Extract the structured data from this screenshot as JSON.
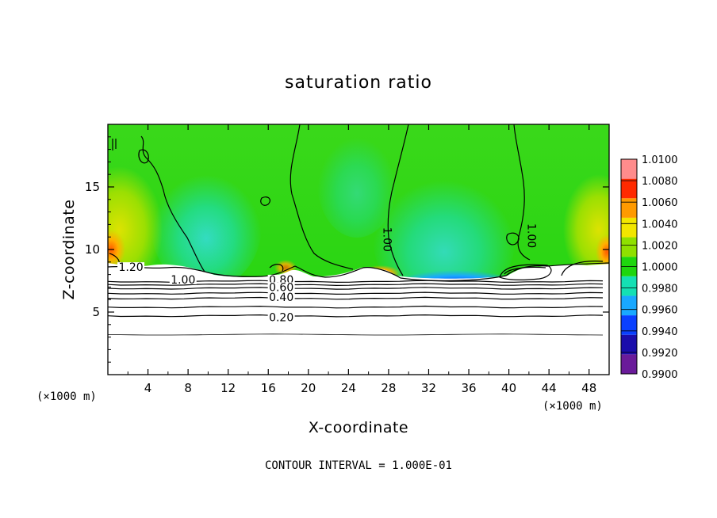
{
  "chart_data": {
    "type": "heatmap",
    "title": "saturation ratio",
    "xlabel": "X-coordinate",
    "ylabel": "Z-coordinate",
    "x_unit_label": "(×1000 m)",
    "y_unit_label": "(×1000 m)",
    "xlim": [
      0,
      50
    ],
    "ylim": [
      0,
      20
    ],
    "x_ticks": [
      4,
      8,
      12,
      16,
      20,
      24,
      28,
      32,
      36,
      40,
      44,
      48
    ],
    "y_ticks": [
      5,
      10,
      15
    ],
    "colorbar": {
      "values": [
        0.99,
        0.992,
        0.994,
        0.996,
        0.998,
        1.0,
        1.002,
        1.004,
        1.006,
        1.008,
        1.01
      ],
      "labels": [
        "0.9900",
        "0.9920",
        "0.9940",
        "0.9960",
        "0.9980",
        "1.0000",
        "1.0020",
        "1.0040",
        "1.0060",
        "1.0080",
        "1.0100"
      ],
      "colors": [
        "#6a1b9a",
        "#1a0dab",
        "#0a40ff",
        "#19a8ff",
        "#14e0b4",
        "#1ed60e",
        "#8fe000",
        "#f2e600",
        "#ff9a00",
        "#ff2a00",
        "#ff8c8c"
      ]
    },
    "contour_interval_text": "CONTOUR INTERVAL = 1.000E-01",
    "contour_labels": [
      {
        "text": "1.20",
        "x": 2.3,
        "z": 8.6
      },
      {
        "text": "1.00",
        "x": 7.5,
        "z": 7.6
      },
      {
        "text": "0.80",
        "x": 17.3,
        "z": 7.6
      },
      {
        "text": "0.60",
        "x": 17.3,
        "z": 7.0
      },
      {
        "text": "0.40",
        "x": 17.3,
        "z": 6.2
      },
      {
        "text": "0.20",
        "x": 17.3,
        "z": 4.6
      },
      {
        "text": "1.00",
        "x": 27.9,
        "z": 10.8
      },
      {
        "text": "1.00",
        "x": 42.3,
        "z": 11.1
      }
    ],
    "contour_levels": [
      {
        "level": 0.2,
        "z": 4.7
      },
      {
        "level": 0.3,
        "z": 5.4
      },
      {
        "level": 0.4,
        "z": 6.1
      },
      {
        "level": 0.5,
        "z": 6.5
      },
      {
        "level": 0.6,
        "z": 6.9
      },
      {
        "level": 0.7,
        "z": 7.2
      },
      {
        "level": 0.8,
        "z": 7.45
      }
    ],
    "grid": false
  }
}
